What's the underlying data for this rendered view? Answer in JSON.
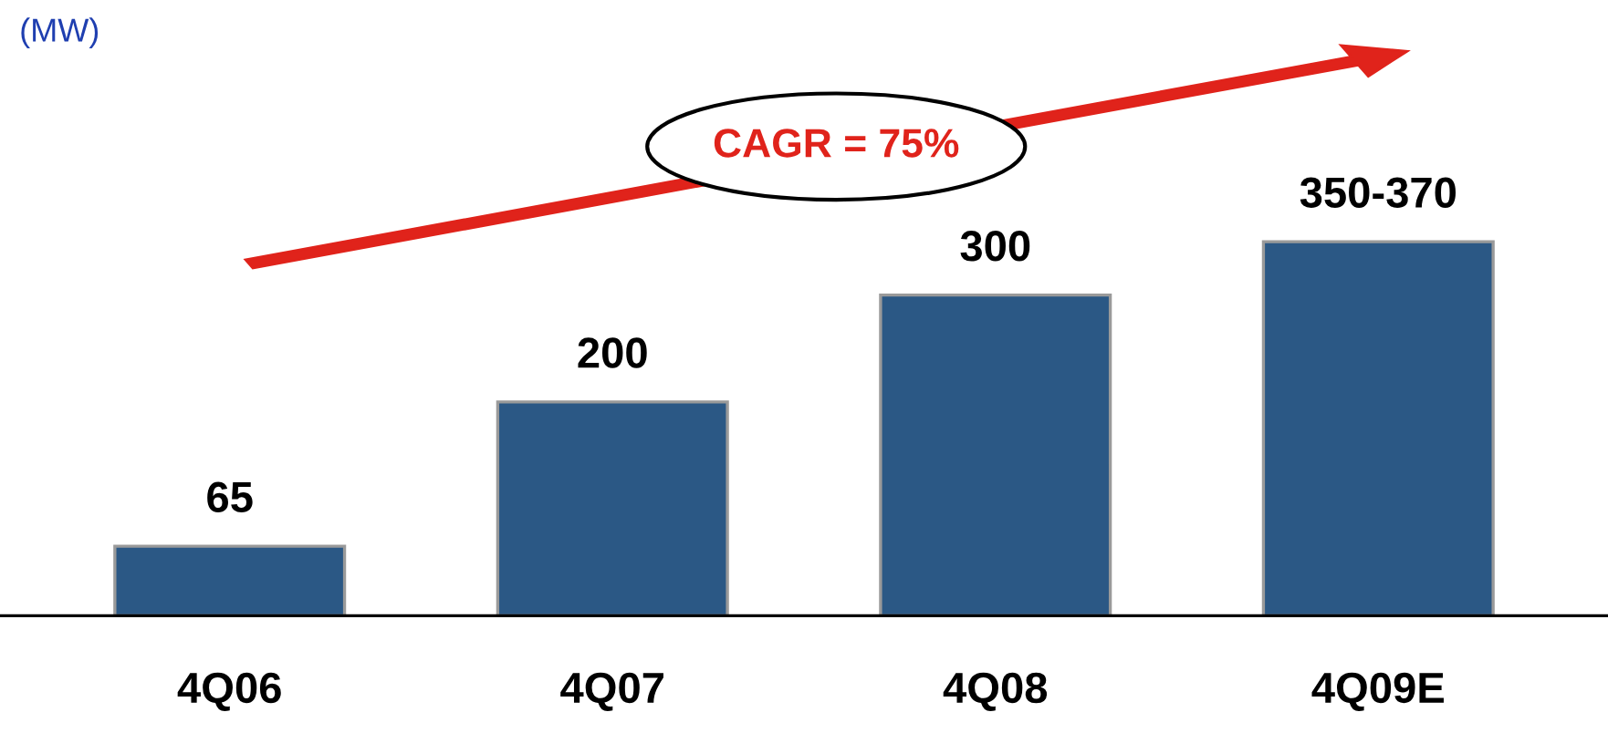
{
  "chart_data": {
    "type": "bar",
    "categories": [
      "4Q06",
      "4Q07",
      "4Q08",
      "4Q09E"
    ],
    "values": [
      65,
      200,
      300,
      350
    ],
    "value_labels": [
      "65",
      "200",
      "300",
      "350-370"
    ],
    "color": "#2b5885",
    "annotations": [
      "(MW)",
      "CAGR = 75%"
    ],
    "grid": false,
    "legend": false
  }
}
